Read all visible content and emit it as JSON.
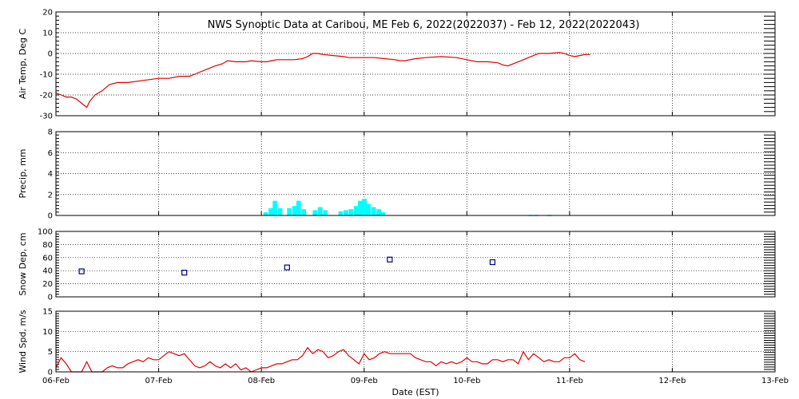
{
  "chart_data": {
    "title": "NWS Synoptic Data at Caribou, ME   Feb  6, 2022(2022037) - Feb 12, 2022(2022043)",
    "type": "line",
    "x_axis": {
      "label": "Date (EST)",
      "range_days": [
        0,
        7
      ],
      "tick_labels": [
        "06-Feb",
        "07-Feb",
        "08-Feb",
        "09-Feb",
        "10-Feb",
        "11-Feb",
        "12-Feb",
        "13-Feb"
      ]
    },
    "panels": [
      {
        "type": "line",
        "ylabel": "Air Temp, Deg C",
        "ylim": [
          -30,
          20
        ],
        "yticks": [
          20,
          10,
          0,
          -10,
          -20,
          -30
        ],
        "color": "#e00000",
        "points": [
          [
            0.0,
            -19
          ],
          [
            0.05,
            -20
          ],
          [
            0.1,
            -21
          ],
          [
            0.15,
            -21
          ],
          [
            0.2,
            -22
          ],
          [
            0.25,
            -24
          ],
          [
            0.3,
            -26
          ],
          [
            0.33,
            -23
          ],
          [
            0.38,
            -20
          ],
          [
            0.45,
            -18
          ],
          [
            0.52,
            -15
          ],
          [
            0.6,
            -14
          ],
          [
            0.7,
            -14
          ],
          [
            0.85,
            -13
          ],
          [
            1.0,
            -12
          ],
          [
            1.1,
            -12
          ],
          [
            1.2,
            -11
          ],
          [
            1.3,
            -11
          ],
          [
            1.35,
            -10
          ],
          [
            1.45,
            -8
          ],
          [
            1.5,
            -7
          ],
          [
            1.55,
            -6
          ],
          [
            1.62,
            -5
          ],
          [
            1.67,
            -3.5
          ],
          [
            1.75,
            -4
          ],
          [
            1.85,
            -4
          ],
          [
            1.9,
            -3.5
          ],
          [
            2.0,
            -4
          ],
          [
            2.05,
            -4
          ],
          [
            2.1,
            -3.5
          ],
          [
            2.15,
            -3
          ],
          [
            2.25,
            -3
          ],
          [
            2.32,
            -3
          ],
          [
            2.4,
            -2.5
          ],
          [
            2.45,
            -1.5
          ],
          [
            2.5,
            0
          ],
          [
            2.55,
            0
          ],
          [
            2.6,
            -0.5
          ],
          [
            2.7,
            -1
          ],
          [
            2.8,
            -1.5
          ],
          [
            2.85,
            -2
          ],
          [
            2.95,
            -2
          ],
          [
            3.1,
            -2
          ],
          [
            3.2,
            -2.5
          ],
          [
            3.3,
            -3
          ],
          [
            3.35,
            -3.5
          ],
          [
            3.4,
            -3.5
          ],
          [
            3.5,
            -2.5
          ],
          [
            3.6,
            -2
          ],
          [
            3.75,
            -1.5
          ],
          [
            3.9,
            -2
          ],
          [
            4.0,
            -3
          ],
          [
            4.1,
            -4
          ],
          [
            4.2,
            -4
          ],
          [
            4.3,
            -4.5
          ],
          [
            4.35,
            -5.5
          ],
          [
            4.4,
            -6
          ],
          [
            4.5,
            -4
          ],
          [
            4.6,
            -2
          ],
          [
            4.65,
            -1
          ],
          [
            4.7,
            0
          ],
          [
            4.8,
            0
          ],
          [
            4.9,
            0.5
          ],
          [
            4.95,
            0
          ],
          [
            5.0,
            -1
          ],
          [
            5.05,
            -1.5
          ],
          [
            5.1,
            -1
          ],
          [
            5.15,
            -0.5
          ],
          [
            5.2,
            -0.5
          ]
        ]
      },
      {
        "type": "bar",
        "ylabel": "Precip, mm",
        "ylim": [
          0,
          8
        ],
        "yticks": [
          8,
          6,
          4,
          2,
          0
        ],
        "color": "#00ffff",
        "bar_width_days": 0.045,
        "bars": [
          [
            2.02,
            0.3
          ],
          [
            2.07,
            0.7
          ],
          [
            2.11,
            1.4
          ],
          [
            2.16,
            0.7
          ],
          [
            2.25,
            0.7
          ],
          [
            2.3,
            0.9
          ],
          [
            2.34,
            1.4
          ],
          [
            2.39,
            0.6
          ],
          [
            2.5,
            0.5
          ],
          [
            2.55,
            0.8
          ],
          [
            2.6,
            0.5
          ],
          [
            2.75,
            0.4
          ],
          [
            2.8,
            0.5
          ],
          [
            2.85,
            0.6
          ],
          [
            2.9,
            0.9
          ],
          [
            2.94,
            1.4
          ],
          [
            2.98,
            1.6
          ],
          [
            3.02,
            1.1
          ],
          [
            3.07,
            0.8
          ],
          [
            3.12,
            0.6
          ],
          [
            3.16,
            0.3
          ],
          [
            4.6,
            0.05
          ],
          [
            4.65,
            0.05
          ],
          [
            4.78,
            0.05
          ]
        ]
      },
      {
        "type": "scatter",
        "ylabel": "Snow Dep, cm",
        "ylim": [
          0,
          100
        ],
        "yticks": [
          100,
          80,
          60,
          40,
          20,
          0
        ],
        "color": "#000080",
        "points": [
          [
            0.25,
            39
          ],
          [
            1.25,
            37
          ],
          [
            2.25,
            45
          ],
          [
            3.25,
            57
          ],
          [
            4.25,
            53
          ]
        ]
      },
      {
        "type": "line",
        "ylabel": "Wind Spd, m/s",
        "ylim": [
          0,
          15
        ],
        "yticks": [
          15,
          10,
          5,
          0
        ],
        "color": "#e00000",
        "points": [
          [
            0.0,
            1
          ],
          [
            0.05,
            3.5
          ],
          [
            0.1,
            2
          ],
          [
            0.15,
            0
          ],
          [
            0.2,
            0
          ],
          [
            0.25,
            0
          ],
          [
            0.3,
            2.5
          ],
          [
            0.35,
            0
          ],
          [
            0.45,
            0
          ],
          [
            0.5,
            1
          ],
          [
            0.55,
            1.5
          ],
          [
            0.6,
            1
          ],
          [
            0.65,
            1
          ],
          [
            0.7,
            2
          ],
          [
            0.75,
            2.5
          ],
          [
            0.8,
            3
          ],
          [
            0.85,
            2.5
          ],
          [
            0.9,
            3.5
          ],
          [
            0.95,
            3
          ],
          [
            1.0,
            3
          ],
          [
            1.05,
            4
          ],
          [
            1.1,
            5
          ],
          [
            1.15,
            4.5
          ],
          [
            1.2,
            4
          ],
          [
            1.25,
            4.5
          ],
          [
            1.3,
            3
          ],
          [
            1.35,
            1.5
          ],
          [
            1.4,
            1
          ],
          [
            1.45,
            1.5
          ],
          [
            1.5,
            2.5
          ],
          [
            1.55,
            1.5
          ],
          [
            1.6,
            1
          ],
          [
            1.65,
            2
          ],
          [
            1.7,
            1
          ],
          [
            1.75,
            2
          ],
          [
            1.8,
            0.5
          ],
          [
            1.85,
            1
          ],
          [
            1.9,
            0
          ],
          [
            1.95,
            0.5
          ],
          [
            2.0,
            1
          ],
          [
            2.05,
            1
          ],
          [
            2.1,
            1.5
          ],
          [
            2.15,
            2
          ],
          [
            2.2,
            2
          ],
          [
            2.25,
            2.5
          ],
          [
            2.3,
            3
          ],
          [
            2.35,
            3
          ],
          [
            2.4,
            4
          ],
          [
            2.45,
            6
          ],
          [
            2.5,
            4.5
          ],
          [
            2.55,
            5.5
          ],
          [
            2.6,
            5
          ],
          [
            2.65,
            3.5
          ],
          [
            2.7,
            4
          ],
          [
            2.75,
            5
          ],
          [
            2.8,
            5.5
          ],
          [
            2.85,
            4
          ],
          [
            2.9,
            3
          ],
          [
            2.95,
            2
          ],
          [
            3.0,
            4.5
          ],
          [
            3.05,
            3
          ],
          [
            3.1,
            3.5
          ],
          [
            3.15,
            4.5
          ],
          [
            3.2,
            5
          ],
          [
            3.25,
            4.5
          ],
          [
            3.3,
            4.5
          ],
          [
            3.35,
            4.5
          ],
          [
            3.4,
            4.5
          ],
          [
            3.45,
            4.5
          ],
          [
            3.5,
            3.5
          ],
          [
            3.55,
            3
          ],
          [
            3.6,
            2.5
          ],
          [
            3.65,
            2.5
          ],
          [
            3.7,
            1.5
          ],
          [
            3.75,
            2.5
          ],
          [
            3.8,
            2
          ],
          [
            3.85,
            2.5
          ],
          [
            3.9,
            2
          ],
          [
            3.95,
            2.5
          ],
          [
            4.0,
            3.5
          ],
          [
            4.05,
            2.5
          ],
          [
            4.1,
            2.5
          ],
          [
            4.15,
            2
          ],
          [
            4.2,
            2
          ],
          [
            4.25,
            3
          ],
          [
            4.3,
            3
          ],
          [
            4.35,
            2.5
          ],
          [
            4.4,
            3
          ],
          [
            4.45,
            3
          ],
          [
            4.5,
            2
          ],
          [
            4.55,
            5
          ],
          [
            4.6,
            3
          ],
          [
            4.65,
            4.5
          ],
          [
            4.7,
            3.5
          ],
          [
            4.75,
            2.5
          ],
          [
            4.8,
            3
          ],
          [
            4.85,
            2.5
          ],
          [
            4.9,
            2.5
          ],
          [
            4.95,
            3.5
          ],
          [
            5.0,
            3.5
          ],
          [
            5.05,
            4.5
          ],
          [
            5.1,
            3
          ],
          [
            5.15,
            2.5
          ]
        ]
      }
    ]
  }
}
